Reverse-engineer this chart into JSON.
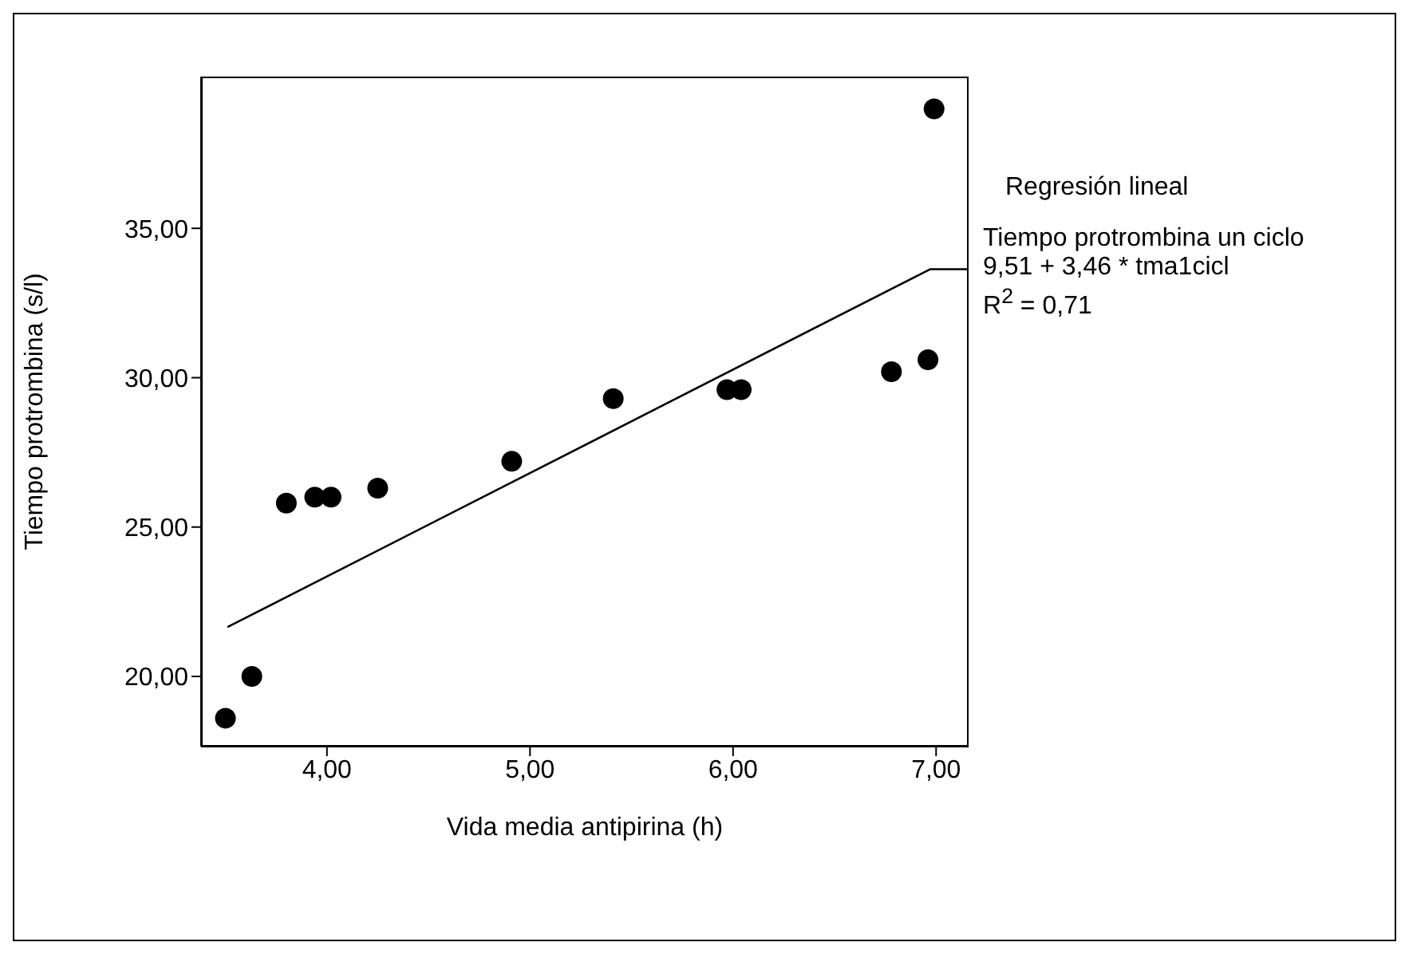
{
  "chart_data": {
    "type": "scatter",
    "xlabel": "Vida media antipirina (h)",
    "ylabel": "Tiempo protrombina (s/l)",
    "xlim": [
      3.38,
      7.16
    ],
    "xticks": [
      {
        "value": 4,
        "label": "4,00"
      },
      {
        "value": 5,
        "label": "5,00"
      },
      {
        "value": 6,
        "label": "6,00"
      },
      {
        "value": 7,
        "label": "7,00"
      }
    ],
    "ylim": [
      17.65,
      40.08
    ],
    "yticks": [
      {
        "value": 20,
        "label": "20,00"
      },
      {
        "value": 25,
        "label": "25,00"
      },
      {
        "value": 30,
        "label": "30,00"
      },
      {
        "value": 35,
        "label": "35,00"
      }
    ],
    "grid": false,
    "legend": false,
    "series": [
      {
        "marker": "circle",
        "color": "#000000",
        "x": [
          3.5,
          3.63,
          3.8,
          3.94,
          4.02,
          4.25,
          4.91,
          5.41,
          5.97,
          6.04,
          6.78,
          6.96,
          6.99
        ],
        "values": [
          18.6,
          20.0,
          25.8,
          26.0,
          26.0,
          26.3,
          27.2,
          29.3,
          29.6,
          29.6,
          30.2,
          30.6,
          39.0
        ]
      },
      {
        "type": "line",
        "color": "#000000",
        "line_style": "solid",
        "x": [
          3.51,
          6.97,
          7.16
        ],
        "values": [
          21.65,
          33.63,
          33.63
        ]
      }
    ],
    "annotations": [
      "Regresión lineal",
      "Tiempo protrombina un ciclo",
      "9,51 + 3,46 * tma1cicl",
      "R$^{2}$ = 0,71"
    ]
  }
}
